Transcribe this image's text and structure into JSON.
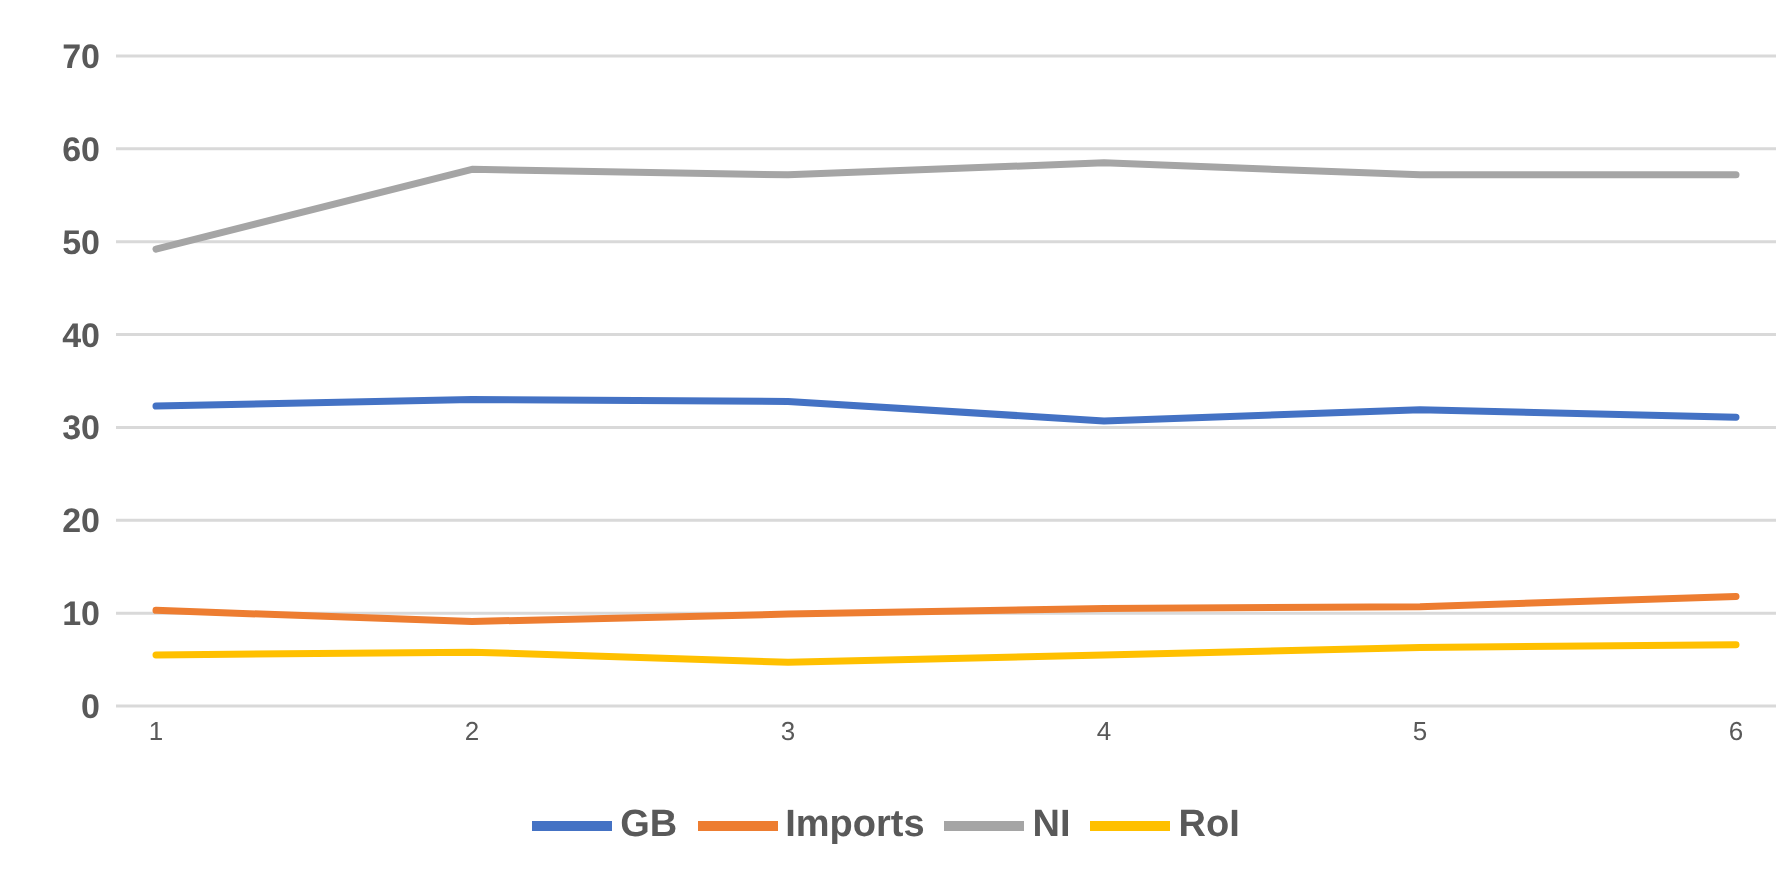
{
  "chart_data": {
    "type": "line",
    "categories": [
      "1",
      "2",
      "3",
      "4",
      "5",
      "6"
    ],
    "series": [
      {
        "name": "GB",
        "color": "#4472c4",
        "values": [
          32.3,
          33.0,
          32.8,
          30.7,
          31.9,
          31.1
        ]
      },
      {
        "name": "Imports",
        "color": "#ed7d31",
        "values": [
          10.3,
          9.1,
          9.9,
          10.5,
          10.7,
          11.8
        ]
      },
      {
        "name": "NI",
        "color": "#a5a5a5",
        "values": [
          49.2,
          57.8,
          57.2,
          58.5,
          57.2,
          57.2
        ]
      },
      {
        "name": "RoI",
        "color": "#ffc000",
        "values": [
          5.5,
          5.8,
          4.7,
          5.5,
          6.3,
          6.6
        ]
      }
    ],
    "ylim": [
      0,
      70
    ],
    "yticks": [
      0,
      10,
      20,
      30,
      40,
      50,
      60,
      70
    ],
    "grid": "y",
    "legend": "bottom",
    "marker": "none",
    "line_style": "solid"
  }
}
